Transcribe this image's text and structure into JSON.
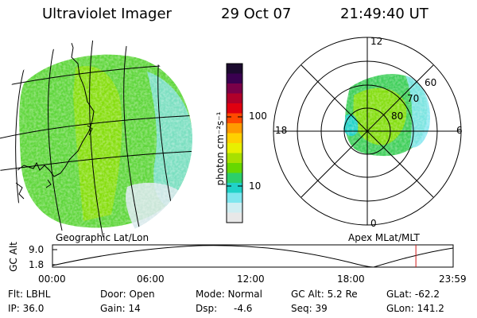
{
  "header": {
    "instrument": "Ultraviolet Imager",
    "date": "29 Oct 07",
    "time": "21:49:40 UT"
  },
  "colorbar": {
    "unit_label": "photon cm⁻²s⁻¹",
    "ticks": [
      "100",
      "10"
    ],
    "colors": [
      "#1b0a2e",
      "#3a0050",
      "#7a0048",
      "#b0002a",
      "#e00010",
      "#ff4a00",
      "#ff9a00",
      "#ffd000",
      "#e8f000",
      "#a8e000",
      "#66d800",
      "#2ccf6a",
      "#20d2c8",
      "#7fe6ee",
      "#cfeef2",
      "#e8e8e8"
    ]
  },
  "left_map": {
    "caption": "Geographic Lat/Lon"
  },
  "polar_plot": {
    "caption": "Apex MLat/MLT",
    "mlt_labels": [
      "12",
      "18",
      "6",
      "0"
    ],
    "lat_labels": [
      "80",
      "70",
      "60"
    ]
  },
  "altitude_strip": {
    "axis_label": "GC Alt",
    "y_ticks": [
      "9.0",
      "1.8"
    ],
    "x_ticks": [
      "00:00",
      "06:00",
      "12:00",
      "18:00",
      "23:59"
    ],
    "current_marker_fraction": 0.907
  },
  "info": {
    "flt": "Flt: LBHL",
    "ip": "IP: 36.0",
    "door": "Door: Open",
    "gain": "Gain: 14",
    "mode": "Mode: Normal",
    "dsp_label": "Dsp:",
    "dsp_value": "-4.6",
    "gc_alt": "GC Alt: 5.2 Re",
    "seq": "Seq: 39",
    "glat": "GLat: -62.2",
    "glon": "GLon: 141.2"
  }
}
